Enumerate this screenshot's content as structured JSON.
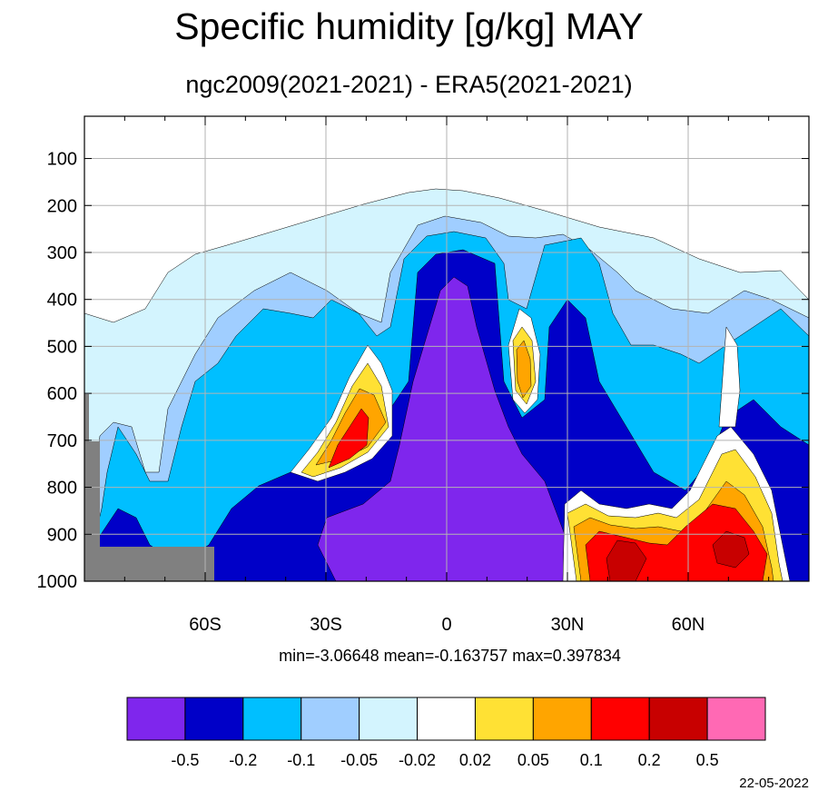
{
  "title": "Specific humidity [g/kg] MAY",
  "subtitle": "ngc2009(2021-2021) - ERA5(2021-2021)",
  "stats_text": "min=-3.06648   mean=-0.163757   max=0.397834",
  "date_stamp": "22-05-2022",
  "chart_data": {
    "type": "heatmap",
    "title": "Specific humidity [g/kg] MAY",
    "subtitle": "ngc2009(2021-2021) - ERA5(2021-2021)",
    "x_axis": {
      "range": [
        -90,
        90
      ],
      "ticks": [
        {
          "value": -60,
          "label": "60S"
        },
        {
          "value": -30,
          "label": "30S"
        },
        {
          "value": 0,
          "label": "0"
        },
        {
          "value": 30,
          "label": "30N"
        },
        {
          "value": 60,
          "label": "60N"
        }
      ]
    },
    "y_axis": {
      "range": [
        1000,
        10
      ],
      "ticks": [
        {
          "value": 100,
          "label": "100"
        },
        {
          "value": 200,
          "label": "200"
        },
        {
          "value": 300,
          "label": "300"
        },
        {
          "value": 400,
          "label": "400"
        },
        {
          "value": 500,
          "label": "500"
        },
        {
          "value": 600,
          "label": "600"
        },
        {
          "value": 700,
          "label": "700"
        },
        {
          "value": 800,
          "label": "800"
        },
        {
          "value": 900,
          "label": "900"
        },
        {
          "value": 1000,
          "label": "1000"
        }
      ]
    },
    "grid": true,
    "colorbar": {
      "colors": [
        "#7f26ed",
        "#0000c8",
        "#00bfff",
        "#a0ceff",
        "#d3f4fe",
        "#ffffff",
        "#ffe134",
        "#ffa500",
        "#ff0000",
        "#c80000",
        "#ff69b4"
      ],
      "labels": [
        "-0.5",
        "-0.2",
        "-0.1",
        "-0.05",
        "-0.02",
        "0.02",
        "0.05",
        "0.1",
        "0.2",
        "0.5"
      ]
    },
    "statistics": {
      "min": -3.06648,
      "mean": -0.163757,
      "max": 0.397834
    },
    "mask_color": "#808080"
  }
}
